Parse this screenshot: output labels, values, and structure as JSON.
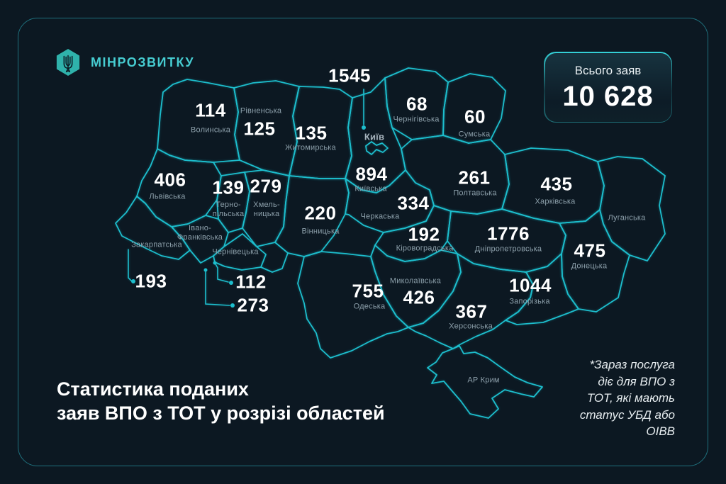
{
  "colors": {
    "background": "#0c1822",
    "map_line": "#1dbecd",
    "number_text": "#ffffff",
    "region_label_text": "#8da0ab",
    "logo_accent": "#46ccd1"
  },
  "logo": {
    "icon": "trident-hexagon-icon",
    "text": "МІНРОЗВИТКУ"
  },
  "total_card": {
    "label": "Всього заяв",
    "value": "10 628"
  },
  "title": {
    "line1": "Статистика поданих",
    "line2": "заяв ВПО з ТОТ у розрізі областей"
  },
  "footnote": {
    "lines": [
      "*Зараз послуга",
      "діє для ВПО з",
      "ТОТ, які мають",
      "статус УБД або",
      "ОІВВ"
    ]
  },
  "map": {
    "country": "Україна",
    "regions": [
      {
        "id": "volynska",
        "name": "Волинська",
        "value": "114"
      },
      {
        "id": "rivnenska",
        "name": "Рівненська",
        "value": "125"
      },
      {
        "id": "zhytomyrska",
        "name": "Житомирська",
        "value": "135"
      },
      {
        "id": "kyiv-city",
        "name": "Київ",
        "value": "1545"
      },
      {
        "id": "chernihivska",
        "name": "Чернігівська",
        "value": "68"
      },
      {
        "id": "sumska",
        "name": "Сумська",
        "value": "60"
      },
      {
        "id": "lvivska",
        "name": "Львівська",
        "value": "406"
      },
      {
        "id": "ternopilska",
        "name": [
          "Терно-",
          "пільська"
        ],
        "value": "139"
      },
      {
        "id": "khmelnytska",
        "name": [
          "Хмель-",
          "ницька"
        ],
        "value": "279"
      },
      {
        "id": "kyivska",
        "name": "Київська",
        "value": "894"
      },
      {
        "id": "cherkaska",
        "name": "Черкаська",
        "value": "334"
      },
      {
        "id": "vinnytska",
        "name": "Вінницька",
        "value": "220"
      },
      {
        "id": "poltavska",
        "name": "Полтавська",
        "value": "261"
      },
      {
        "id": "kharkivska",
        "name": "Харківська",
        "value": "435"
      },
      {
        "id": "luhanska",
        "name": "Луганська",
        "value": null
      },
      {
        "id": "kirovohradska",
        "name": "Кіровоградська",
        "value": "192"
      },
      {
        "id": "dnipropetrovska",
        "name": "Дніпропетровська",
        "value": "1776"
      },
      {
        "id": "donetska",
        "name": "Донецька",
        "value": "475"
      },
      {
        "id": "zaporizka",
        "name": "Запорізька",
        "value": "1044"
      },
      {
        "id": "zakarpatska",
        "name": "Закарпатська",
        "value": "193"
      },
      {
        "id": "ivano-frankivska",
        "name": [
          "Івано-",
          "Франківська"
        ],
        "value": "112"
      },
      {
        "id": "chernivetska",
        "name": "Чернівецька",
        "value": "273"
      },
      {
        "id": "odeska",
        "name": "Одеська",
        "value": "755"
      },
      {
        "id": "mykolaivska",
        "name": "Миколаївська",
        "value": "426"
      },
      {
        "id": "khersonska",
        "name": "Херсонська",
        "value": "367"
      },
      {
        "id": "crimea",
        "name": "АР Крим",
        "value": null
      }
    ]
  }
}
